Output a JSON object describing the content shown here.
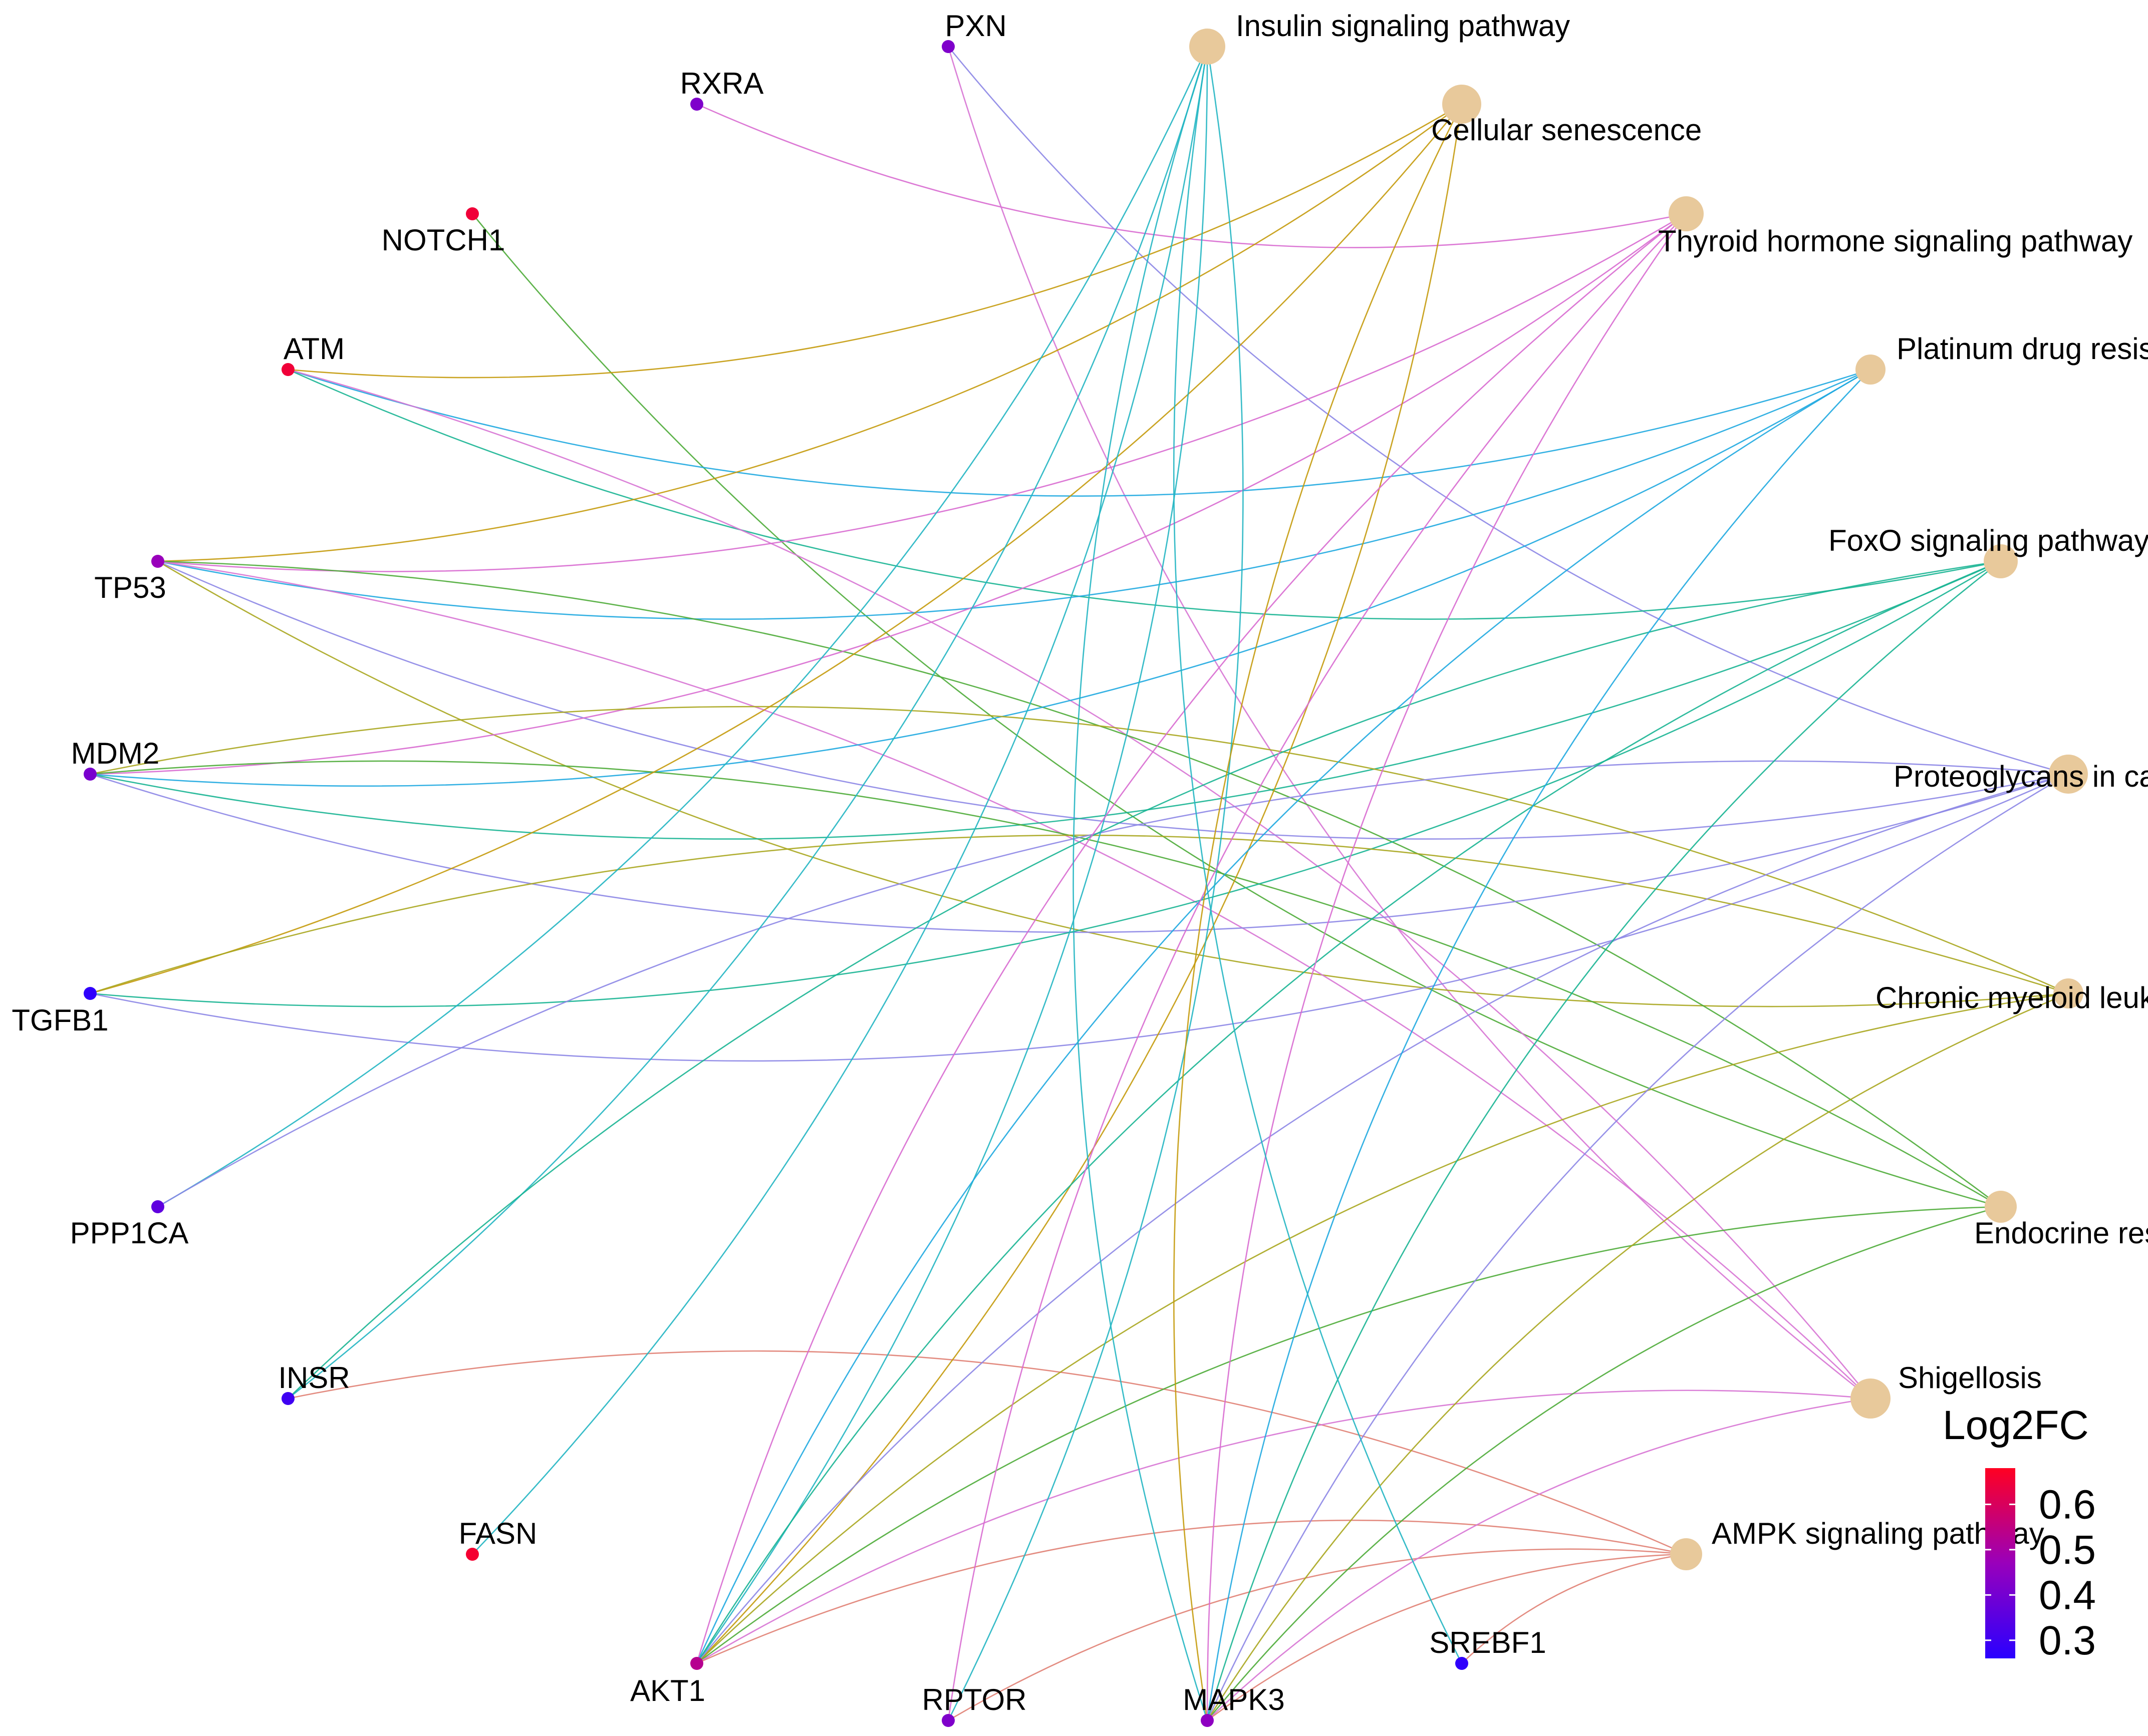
{
  "legend": {
    "title": "Log2FC",
    "ticks": [
      "0.6",
      "0.5",
      "0.4",
      "0.3"
    ],
    "tick_values": [
      0.6,
      0.5,
      0.4,
      0.3
    ],
    "min": 0.26,
    "max": 0.68,
    "color_low": "#2a00ff",
    "color_high": "#ff0022"
  },
  "category_node_color": "#e8c99b",
  "categories": [
    {
      "id": "insulin",
      "label": "Insulin signaling pathway",
      "edge_color": "#21b5c2"
    },
    {
      "id": "senescence",
      "label": "Cellular senescence",
      "edge_color": "#c49a0b"
    },
    {
      "id": "thyroid",
      "label": "Thyroid hormone signaling pathway",
      "edge_color": "#d86ad0"
    },
    {
      "id": "platinum",
      "label": "Platinum drug resistance",
      "edge_color": "#1ea9e0"
    },
    {
      "id": "foxo",
      "label": "FoxO signaling pathway",
      "edge_color": "#17b492"
    },
    {
      "id": "proteoglycans",
      "label": "Proteoglycans in cancer",
      "edge_color": "#8c86e6"
    },
    {
      "id": "cml",
      "label": "Chronic myeloid leukemia",
      "edge_color": "#a9a61e"
    },
    {
      "id": "endocrine",
      "label": "Endocrine resistance",
      "edge_color": "#4dab37"
    },
    {
      "id": "shigellosis",
      "label": "Shigellosis",
      "edge_color": "#d774d4"
    },
    {
      "id": "ampk",
      "label": "AMPK signaling pathway",
      "edge_color": "#e07f73"
    }
  ],
  "genes": [
    {
      "id": "PXN",
      "label": "PXN",
      "log2fc": 0.42
    },
    {
      "id": "RXRA",
      "label": "RXRA",
      "log2fc": 0.42
    },
    {
      "id": "NOTCH1",
      "label": "NOTCH1",
      "log2fc": 0.65
    },
    {
      "id": "ATM",
      "label": "ATM",
      "log2fc": 0.65
    },
    {
      "id": "TP53",
      "label": "TP53",
      "log2fc": 0.47
    },
    {
      "id": "MDM2",
      "label": "MDM2",
      "log2fc": 0.41
    },
    {
      "id": "TGFB1",
      "label": "TGFB1",
      "log2fc": 0.27
    },
    {
      "id": "PPP1CA",
      "label": "PPP1CA",
      "log2fc": 0.36
    },
    {
      "id": "INSR",
      "label": "INSR",
      "log2fc": 0.3
    },
    {
      "id": "FASN",
      "label": "FASN",
      "log2fc": 0.66
    },
    {
      "id": "AKT1",
      "label": "AKT1",
      "log2fc": 0.53
    },
    {
      "id": "RPTOR",
      "label": "RPTOR",
      "log2fc": 0.42
    },
    {
      "id": "MAPK3",
      "label": "MAPK3",
      "log2fc": 0.45
    },
    {
      "id": "SREBF1",
      "label": "SREBF1",
      "log2fc": 0.27
    }
  ],
  "edges": [
    [
      "RXRA",
      "thyroid"
    ],
    [
      "PXN",
      "proteoglycans"
    ],
    [
      "PXN",
      "shigellosis"
    ],
    [
      "NOTCH1",
      "endocrine"
    ],
    [
      "ATM",
      "senescence"
    ],
    [
      "ATM",
      "platinum"
    ],
    [
      "ATM",
      "foxo"
    ],
    [
      "ATM",
      "shigellosis"
    ],
    [
      "TP53",
      "senescence"
    ],
    [
      "TP53",
      "thyroid"
    ],
    [
      "TP53",
      "platinum"
    ],
    [
      "TP53",
      "proteoglycans"
    ],
    [
      "TP53",
      "cml"
    ],
    [
      "TP53",
      "endocrine"
    ],
    [
      "TP53",
      "shigellosis"
    ],
    [
      "MDM2",
      "thyroid"
    ],
    [
      "MDM2",
      "platinum"
    ],
    [
      "MDM2",
      "foxo"
    ],
    [
      "MDM2",
      "proteoglycans"
    ],
    [
      "MDM2",
      "cml"
    ],
    [
      "MDM2",
      "endocrine"
    ],
    [
      "TGFB1",
      "senescence"
    ],
    [
      "TGFB1",
      "foxo"
    ],
    [
      "TGFB1",
      "proteoglycans"
    ],
    [
      "TGFB1",
      "cml"
    ],
    [
      "PPP1CA",
      "insulin"
    ],
    [
      "PPP1CA",
      "proteoglycans"
    ],
    [
      "INSR",
      "insulin"
    ],
    [
      "INSR",
      "foxo"
    ],
    [
      "INSR",
      "ampk"
    ],
    [
      "FASN",
      "insulin"
    ],
    [
      "AKT1",
      "insulin"
    ],
    [
      "AKT1",
      "senescence"
    ],
    [
      "AKT1",
      "thyroid"
    ],
    [
      "AKT1",
      "platinum"
    ],
    [
      "AKT1",
      "foxo"
    ],
    [
      "AKT1",
      "proteoglycans"
    ],
    [
      "AKT1",
      "cml"
    ],
    [
      "AKT1",
      "endocrine"
    ],
    [
      "AKT1",
      "shigellosis"
    ],
    [
      "AKT1",
      "ampk"
    ],
    [
      "RPTOR",
      "insulin"
    ],
    [
      "RPTOR",
      "thyroid"
    ],
    [
      "RPTOR",
      "ampk"
    ],
    [
      "MAPK3",
      "insulin"
    ],
    [
      "MAPK3",
      "senescence"
    ],
    [
      "MAPK3",
      "thyroid"
    ],
    [
      "MAPK3",
      "platinum"
    ],
    [
      "MAPK3",
      "foxo"
    ],
    [
      "MAPK3",
      "proteoglycans"
    ],
    [
      "MAPK3",
      "cml"
    ],
    [
      "MAPK3",
      "endocrine"
    ],
    [
      "MAPK3",
      "shigellosis"
    ],
    [
      "MAPK3",
      "ampk"
    ],
    [
      "SREBF1",
      "insulin"
    ],
    [
      "SREBF1",
      "ampk"
    ]
  ]
}
